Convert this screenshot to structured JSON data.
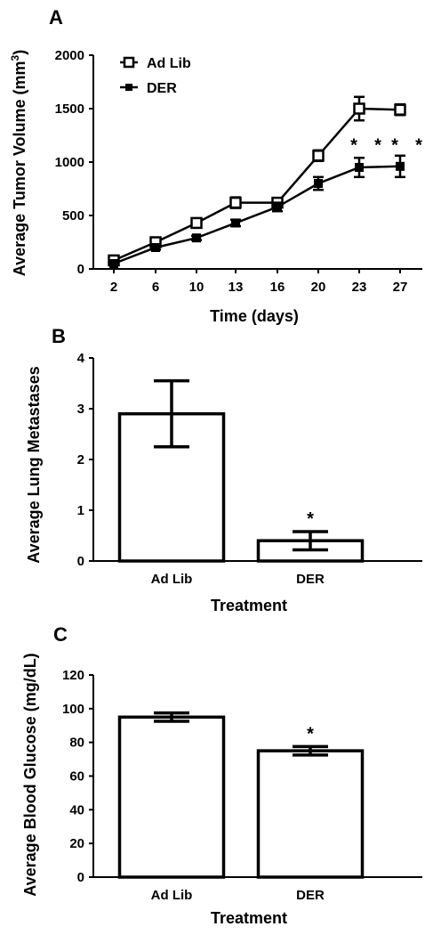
{
  "chart_data": [
    {
      "panel_label": "A",
      "type": "line",
      "xlabel": "Time (days)",
      "ylabel_main": "Average Tumor Volume (mm",
      "ylabel_sup": "3",
      "ylabel_end": ")",
      "categories": [
        "2",
        "6",
        "10",
        "13",
        "16",
        "20",
        "23",
        "27"
      ],
      "ylim": [
        0,
        2000
      ],
      "yticks": [
        0,
        500,
        1000,
        1500,
        2000
      ],
      "legend_position": "top-left",
      "series": [
        {
          "name": "Ad Lib",
          "marker": "open-square",
          "values": [
            80,
            250,
            430,
            620,
            620,
            1060,
            1500,
            1490
          ],
          "errors": [
            20,
            25,
            30,
            50,
            40,
            50,
            110,
            50
          ]
        },
        {
          "name": "DER",
          "marker": "filled-square",
          "values": [
            50,
            200,
            290,
            430,
            580,
            800,
            950,
            960
          ],
          "errors": [
            15,
            20,
            20,
            30,
            40,
            60,
            90,
            100
          ]
        }
      ],
      "annotations": [
        {
          "text": "*",
          "category": "23",
          "y": 1170
        },
        {
          "text": "*",
          "category": "23",
          "y": 1170,
          "offset": 1
        },
        {
          "text": "*",
          "category": "27",
          "y": 1170
        },
        {
          "text": "*",
          "category": "27",
          "y": 1170,
          "offset": 1
        }
      ]
    },
    {
      "panel_label": "B",
      "type": "bar",
      "xlabel": "Treatment",
      "ylabel": "Average Lung Metastases",
      "categories": [
        "Ad Lib",
        "DER"
      ],
      "values": [
        2.9,
        0.4
      ],
      "errors": [
        0.65,
        0.18
      ],
      "ylim": [
        0,
        4
      ],
      "yticks": [
        0,
        1,
        2,
        3,
        4
      ],
      "significance": [
        "",
        "*"
      ]
    },
    {
      "panel_label": "C",
      "type": "bar",
      "xlabel": "Treatment",
      "ylabel": "Average Blood Glucose (mg/dL)",
      "categories": [
        "Ad Lib",
        "DER"
      ],
      "values": [
        95,
        75
      ],
      "errors": [
        2.5,
        2.5
      ],
      "ylim": [
        0,
        120
      ],
      "yticks": [
        0,
        20,
        40,
        60,
        80,
        100,
        120
      ],
      "significance": [
        "",
        "*"
      ]
    }
  ]
}
